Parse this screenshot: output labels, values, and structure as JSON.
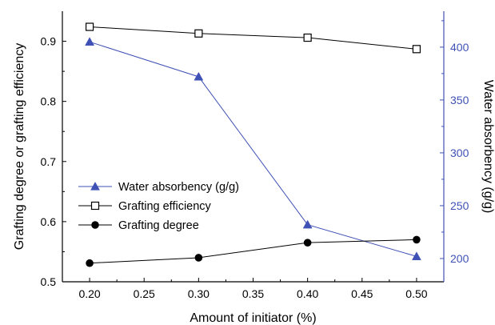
{
  "chart_data": {
    "type": "line",
    "x": [
      0.2,
      0.3,
      0.4,
      0.5
    ],
    "xlabel": "Amount of initiator (%)",
    "xlim": [
      0.175,
      0.525
    ],
    "xticks": [
      0.2,
      0.25,
      0.3,
      0.35,
      0.4,
      0.45,
      0.5
    ],
    "xtick_labels": [
      "0.20",
      "0.25",
      "0.30",
      "0.35",
      "0.40",
      "0.45",
      "0.50"
    ],
    "ylabel_left": "Grafting degree or grafting efficiency",
    "ylim_left": [
      0.5,
      0.95
    ],
    "yticks_left": [
      0.5,
      0.6,
      0.7,
      0.8,
      0.9
    ],
    "ytick_labels_left": [
      "0.5",
      "0.6",
      "0.7",
      "0.8",
      "0.9"
    ],
    "ylabel_right": "Water absorbency (g/g)",
    "ylim_right": [
      178,
      434
    ],
    "yticks_right": [
      200,
      250,
      300,
      350,
      400
    ],
    "ytick_labels_right": [
      "200",
      "250",
      "300",
      "350",
      "400"
    ],
    "grid": false,
    "legend_position": "lower-left",
    "colors": {
      "left_axis": "#000000",
      "right_axis": "#3f51b5",
      "water": "#3f51b5"
    },
    "series": [
      {
        "name": "Water absorbency (g/g)",
        "axis": "right",
        "marker": "triangle",
        "color": "#3f51b5",
        "values": [
          405,
          372,
          232,
          202
        ]
      },
      {
        "name": "Grafting efficiency",
        "axis": "left",
        "marker": "open-square",
        "color": "#000000",
        "values": [
          0.924,
          0.913,
          0.906,
          0.887
        ]
      },
      {
        "name": "Grafting degree",
        "axis": "left",
        "marker": "filled-circle",
        "color": "#000000",
        "values": [
          0.531,
          0.54,
          0.565,
          0.57
        ]
      }
    ]
  }
}
